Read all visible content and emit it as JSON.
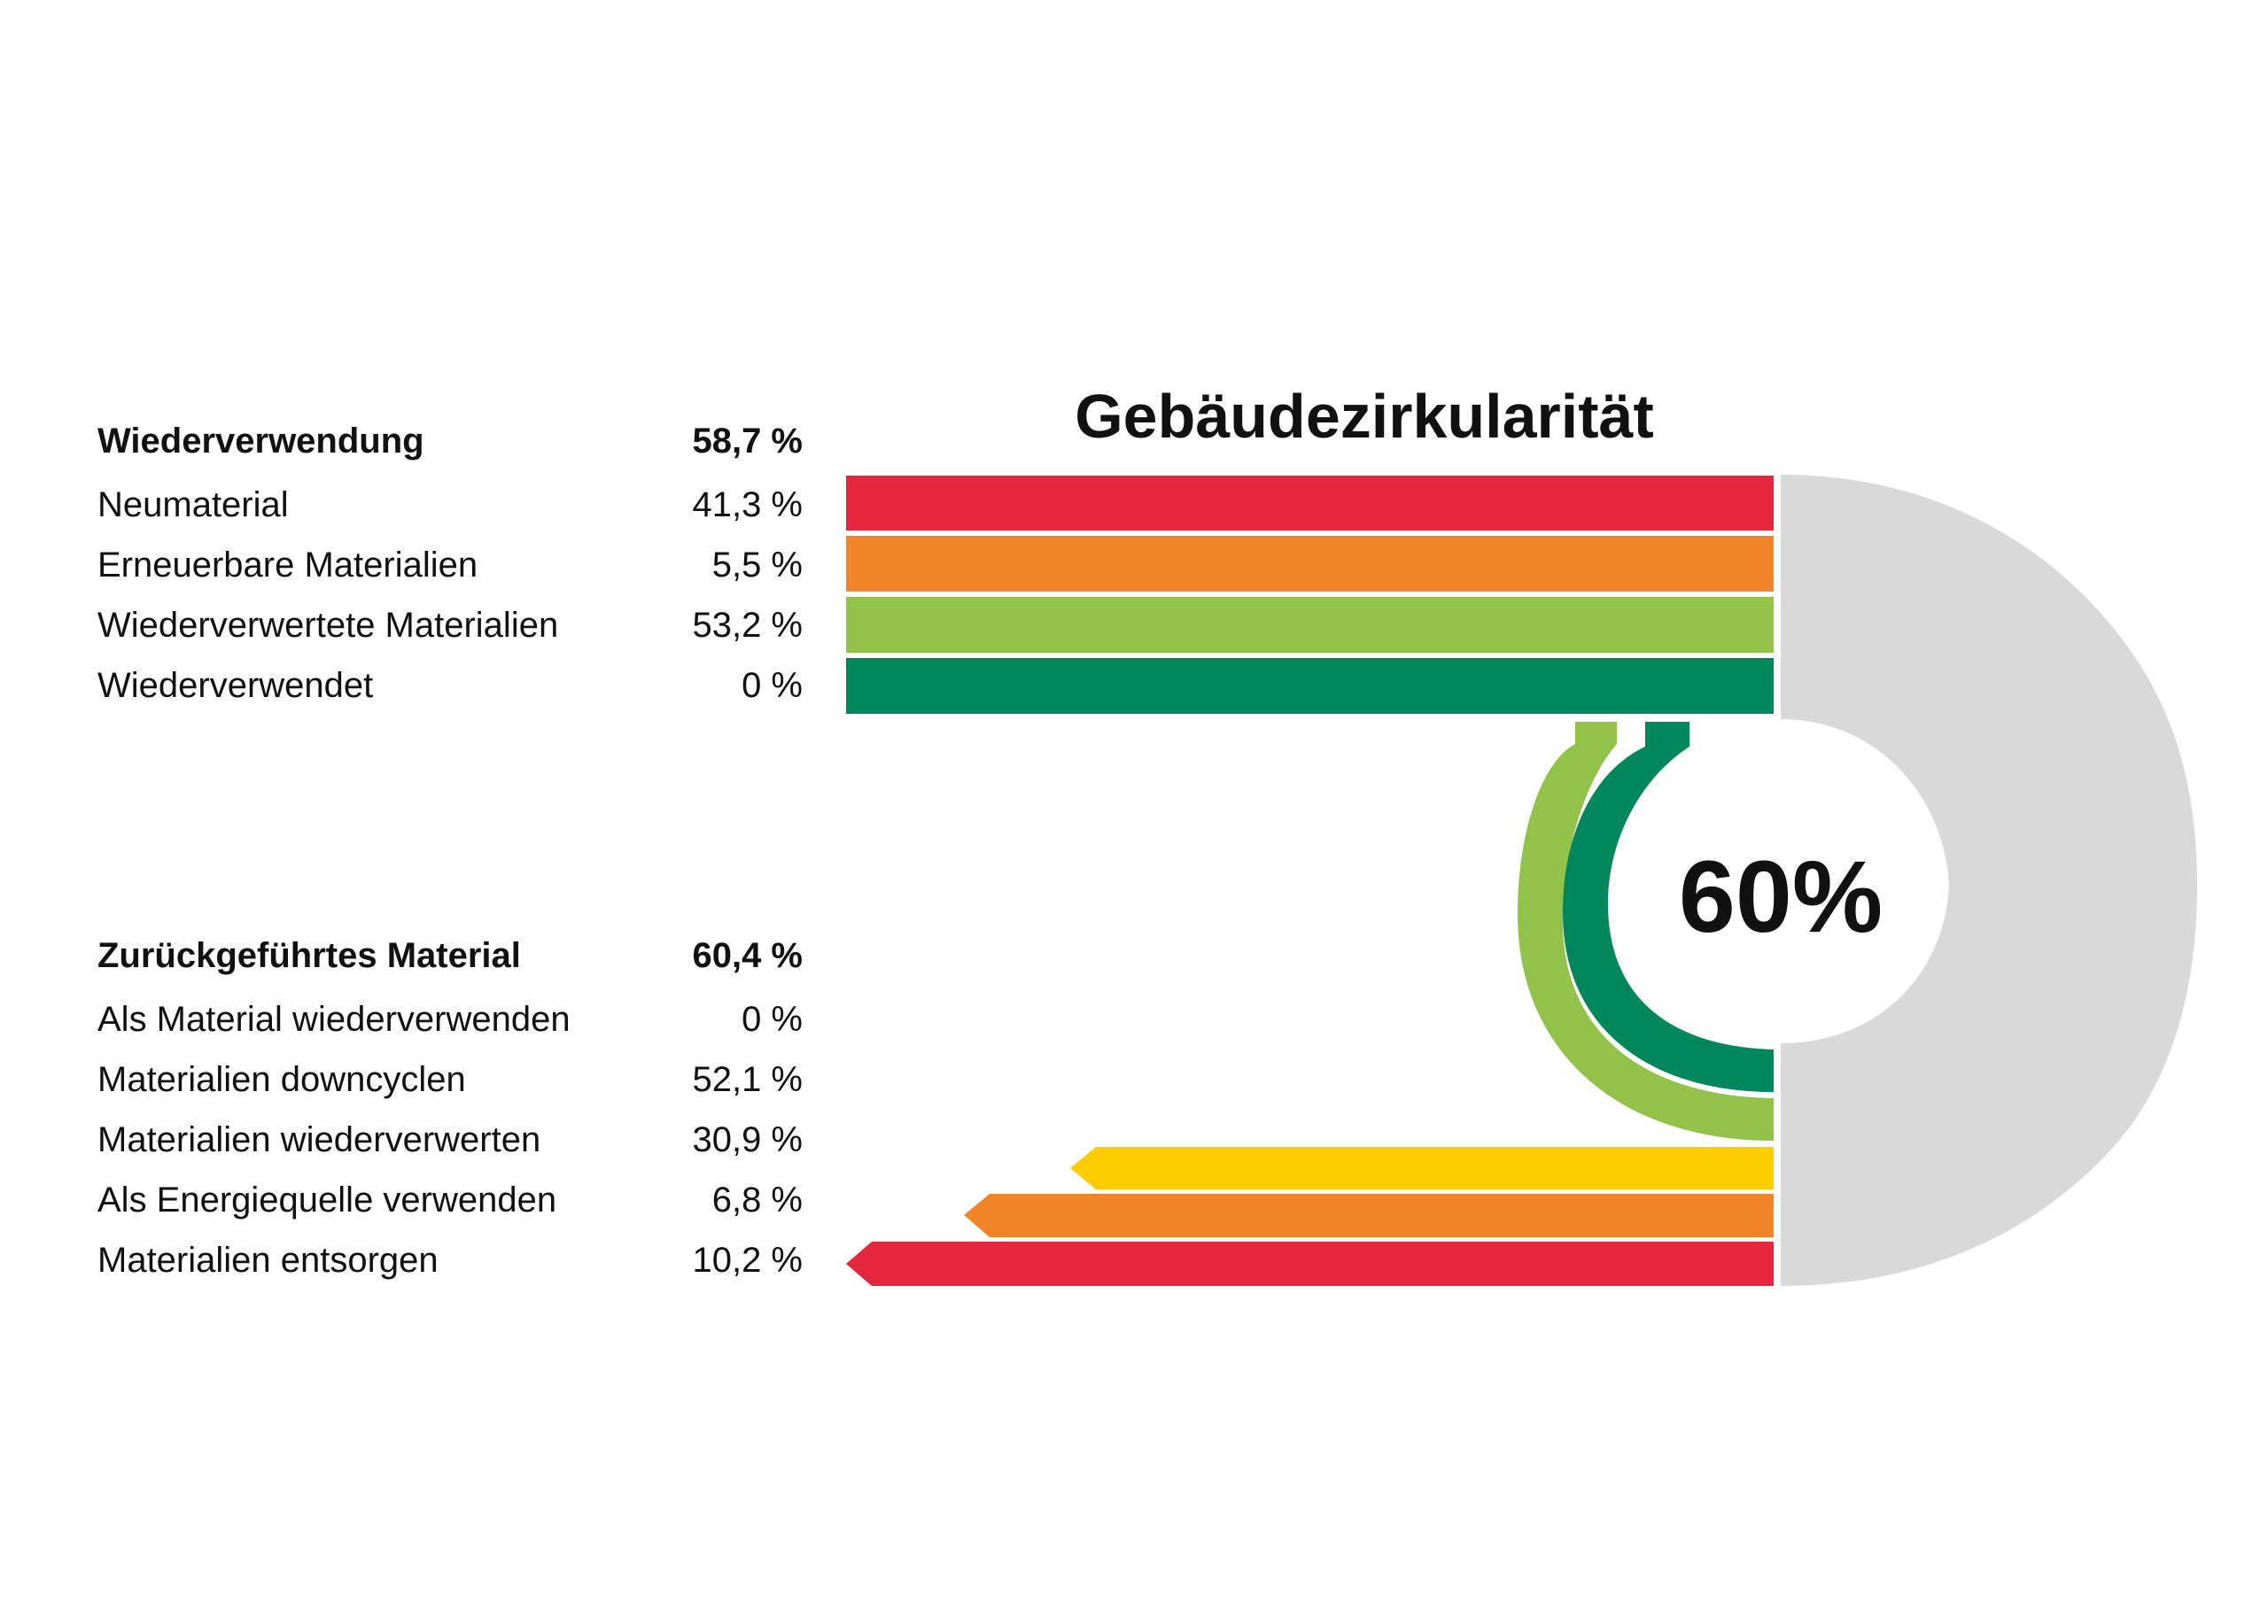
{
  "title": "Gebäudezirkularität",
  "circularity_value": "60%",
  "input": {
    "heading": {
      "label": "Wiederverwendung",
      "value": "58,7 %"
    },
    "items": [
      {
        "label": "Neumaterial",
        "value": "41,3 %",
        "color": "#e5263f"
      },
      {
        "label": "Erneuerbare Materialien",
        "value": "5,5 %",
        "color": "#f08529"
      },
      {
        "label": "Wiederverwertete Materialien",
        "value": "53,2 %",
        "color": "#92c249"
      },
      {
        "label": "Wiederverwendet",
        "value": "0 %",
        "color": "#00875b"
      }
    ]
  },
  "output": {
    "heading": {
      "label": "Zurückgeführtes Material",
      "value": "60,4 %"
    },
    "items": [
      {
        "label": "Als Material wiederverwenden",
        "value": "0 %",
        "color": "#00875b"
      },
      {
        "label": "Materialien downcyclen",
        "value": "52,1 %",
        "color": "#92c249"
      },
      {
        "label": "Materialien wiederverwerten",
        "value": "30,9 %",
        "color": "#ffcc00"
      },
      {
        "label": "Als Energiequelle verwenden",
        "value": "6,8 %",
        "color": "#f08529"
      },
      {
        "label": "Materialien entsorgen",
        "value": "10,2 %",
        "color": "#e5263f"
      }
    ]
  },
  "colors": {
    "ring": "#d9d9d9"
  }
}
